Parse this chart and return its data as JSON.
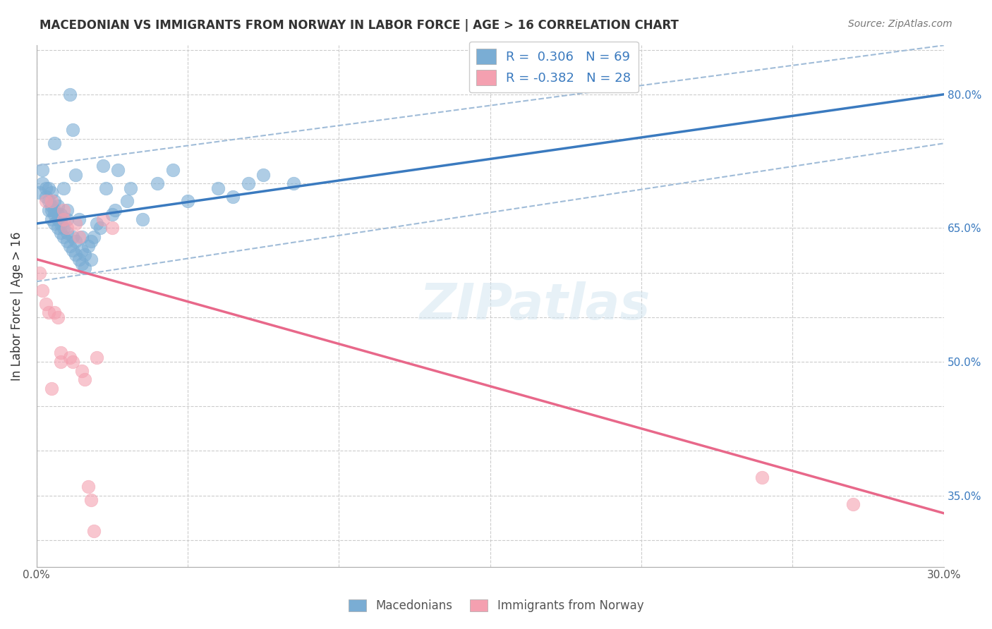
{
  "title": "MACEDONIAN VS IMMIGRANTS FROM NORWAY IN LABOR FORCE | AGE > 16 CORRELATION CHART",
  "source": "Source: ZipAtlas.com",
  "xlabel_bottom": "",
  "ylabel": "In Labor Force | Age > 16",
  "x_min": 0.0,
  "x_max": 0.3,
  "y_min": 0.27,
  "y_max": 0.855,
  "x_ticks": [
    0.0,
    0.05,
    0.1,
    0.15,
    0.2,
    0.25,
    0.3
  ],
  "x_tick_labels": [
    "0.0%",
    "",
    "",
    "",
    "",
    "",
    "30.0%"
  ],
  "y_ticks": [
    0.3,
    0.35,
    0.4,
    0.45,
    0.5,
    0.55,
    0.6,
    0.65,
    0.7,
    0.75,
    0.8,
    0.85
  ],
  "y_tick_labels_right": [
    "",
    "35.0%",
    "",
    "",
    "50.0%",
    "",
    "",
    "65.0%",
    "",
    "",
    "80.0%",
    ""
  ],
  "blue_color": "#7aadd4",
  "blue_line_color": "#3a7abf",
  "blue_dash_color": "#a0bcd8",
  "pink_color": "#f4a0b0",
  "pink_line_color": "#e8688a",
  "legend_R_blue": "R =  0.306",
  "legend_N_blue": "N = 69",
  "legend_R_pink": "R = -0.382",
  "legend_N_pink": "N = 28",
  "label_macedonians": "Macedonians",
  "label_norway": "Immigrants from Norway",
  "watermark": "ZIPatlas",
  "blue_x": [
    0.001,
    0.002,
    0.002,
    0.003,
    0.003,
    0.004,
    0.004,
    0.004,
    0.005,
    0.005,
    0.005,
    0.005,
    0.006,
    0.006,
    0.006,
    0.006,
    0.006,
    0.007,
    0.007,
    0.007,
    0.007,
    0.008,
    0.008,
    0.008,
    0.008,
    0.009,
    0.009,
    0.009,
    0.01,
    0.01,
    0.01,
    0.01,
    0.011,
    0.011,
    0.012,
    0.012,
    0.012,
    0.013,
    0.013,
    0.013,
    0.014,
    0.014,
    0.015,
    0.015,
    0.015,
    0.016,
    0.016,
    0.017,
    0.018,
    0.018,
    0.019,
    0.02,
    0.021,
    0.022,
    0.023,
    0.025,
    0.026,
    0.027,
    0.03,
    0.031,
    0.035,
    0.04,
    0.045,
    0.05,
    0.06,
    0.065,
    0.07,
    0.075,
    0.085
  ],
  "blue_y": [
    0.69,
    0.7,
    0.715,
    0.685,
    0.695,
    0.67,
    0.68,
    0.695,
    0.66,
    0.67,
    0.675,
    0.69,
    0.655,
    0.665,
    0.67,
    0.68,
    0.745,
    0.65,
    0.66,
    0.665,
    0.675,
    0.645,
    0.655,
    0.66,
    0.665,
    0.64,
    0.65,
    0.695,
    0.635,
    0.645,
    0.66,
    0.67,
    0.63,
    0.8,
    0.625,
    0.64,
    0.76,
    0.62,
    0.635,
    0.71,
    0.615,
    0.66,
    0.61,
    0.625,
    0.64,
    0.605,
    0.62,
    0.63,
    0.615,
    0.635,
    0.64,
    0.655,
    0.65,
    0.72,
    0.695,
    0.665,
    0.67,
    0.715,
    0.68,
    0.695,
    0.66,
    0.7,
    0.715,
    0.68,
    0.695,
    0.685,
    0.7,
    0.71,
    0.7
  ],
  "pink_x": [
    0.001,
    0.002,
    0.003,
    0.003,
    0.004,
    0.005,
    0.005,
    0.006,
    0.007,
    0.008,
    0.008,
    0.009,
    0.009,
    0.01,
    0.011,
    0.012,
    0.013,
    0.014,
    0.015,
    0.016,
    0.017,
    0.018,
    0.019,
    0.02,
    0.022,
    0.025,
    0.24,
    0.27
  ],
  "pink_y": [
    0.6,
    0.58,
    0.565,
    0.68,
    0.555,
    0.47,
    0.68,
    0.555,
    0.55,
    0.5,
    0.51,
    0.67,
    0.66,
    0.65,
    0.505,
    0.5,
    0.655,
    0.64,
    0.49,
    0.48,
    0.36,
    0.345,
    0.31,
    0.505,
    0.66,
    0.65,
    0.37,
    0.34
  ]
}
